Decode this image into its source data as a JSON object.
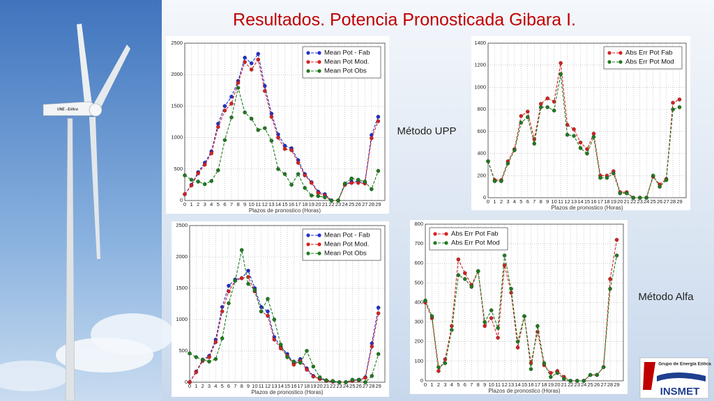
{
  "slide": {
    "title": "Resultados. Potencia Pronosticada Gibara I.",
    "method_upp": "Método UPP",
    "method_alfa": "Método Alfa",
    "turbine_label": "UNE - Eólica",
    "logo_group": "Grupo de Energía Eólica",
    "logo_name": "INSMET"
  },
  "chart_data": [
    {
      "type": "line",
      "xlabel": "Plazos de pronostico (Horas)",
      "legend": "upper right",
      "grid": true,
      "x": [
        0,
        1,
        2,
        3,
        4,
        5,
        6,
        7,
        8,
        9,
        10,
        11,
        12,
        13,
        14,
        15,
        16,
        17,
        18,
        19,
        20,
        21,
        22,
        23,
        24,
        25,
        26,
        27,
        28,
        29
      ],
      "xlim": [
        0,
        30
      ],
      "xticks": [
        0,
        1,
        2,
        3,
        4,
        5,
        6,
        7,
        8,
        9,
        10,
        11,
        12,
        13,
        14,
        15,
        16,
        17,
        18,
        19,
        20,
        21,
        22,
        23,
        24,
        25,
        26,
        27,
        28,
        29
      ],
      "ylim": [
        0,
        2500
      ],
      "yticks": [
        0,
        500,
        1000,
        1500,
        2000,
        2500
      ],
      "series": [
        {
          "name": "Mean Pot - Fab",
          "color": "#1f2fd0",
          "values": [
            100,
            250,
            450,
            600,
            780,
            1220,
            1500,
            1650,
            1900,
            2270,
            2180,
            2330,
            1820,
            1380,
            1050,
            870,
            830,
            640,
            420,
            290,
            140,
            100,
            0,
            0,
            250,
            300,
            300,
            280,
            1040,
            1330
          ]
        },
        {
          "name": "Mean Pot Mod.",
          "color": "#d62020",
          "values": [
            100,
            240,
            430,
            570,
            750,
            1170,
            1430,
            1540,
            1870,
            2200,
            2080,
            2240,
            1740,
            1330,
            1000,
            820,
            800,
            600,
            400,
            280,
            120,
            80,
            0,
            0,
            250,
            280,
            280,
            270,
            990,
            1260
          ]
        },
        {
          "name": "Mean Pot Obs",
          "color": "#1e7a1e",
          "values": [
            400,
            330,
            300,
            260,
            310,
            480,
            960,
            1320,
            1790,
            1400,
            1300,
            1120,
            1150,
            950,
            500,
            420,
            250,
            420,
            200,
            80,
            70,
            50,
            0,
            0,
            270,
            350,
            330,
            300,
            180,
            470
          ]
        }
      ]
    },
    {
      "type": "line",
      "xlabel": "Plazos de pronostico (Horas)",
      "legend": "upper right",
      "grid": true,
      "x": [
        0,
        1,
        2,
        3,
        4,
        5,
        6,
        7,
        8,
        9,
        10,
        11,
        12,
        13,
        14,
        15,
        16,
        17,
        18,
        19,
        20,
        21,
        22,
        23,
        24,
        25,
        26,
        27,
        28,
        29
      ],
      "xlim": [
        0,
        30
      ],
      "xticks": [
        0,
        1,
        2,
        3,
        4,
        5,
        6,
        7,
        8,
        9,
        10,
        11,
        12,
        13,
        14,
        15,
        16,
        17,
        18,
        19,
        20,
        21,
        22,
        23,
        24,
        25,
        26,
        27,
        28,
        29
      ],
      "ylim": [
        0,
        1400
      ],
      "yticks": [
        0,
        200,
        400,
        600,
        800,
        1000,
        1200,
        1400
      ],
      "series": [
        {
          "name": "Abs Err Pot Fab",
          "color": "#d62020",
          "values": [
            330,
            160,
            160,
            330,
            440,
            740,
            780,
            530,
            850,
            900,
            870,
            1220,
            660,
            620,
            500,
            440,
            580,
            200,
            200,
            240,
            50,
            50,
            0,
            0,
            0,
            190,
            120,
            170,
            860,
            890
          ]
        },
        {
          "name": "Abs Err Pot Mod",
          "color": "#1e7a1e",
          "values": [
            330,
            150,
            150,
            310,
            430,
            680,
            730,
            490,
            820,
            820,
            790,
            1120,
            570,
            560,
            450,
            400,
            550,
            180,
            180,
            220,
            40,
            40,
            0,
            0,
            0,
            200,
            100,
            160,
            800,
            820
          ]
        }
      ]
    },
    {
      "type": "line",
      "xlabel": "Plazos de pronostico (Horas)",
      "legend": "upper right",
      "grid": true,
      "x": [
        0,
        1,
        2,
        3,
        4,
        5,
        6,
        7,
        8,
        9,
        10,
        11,
        12,
        13,
        14,
        15,
        16,
        17,
        18,
        19,
        20,
        21,
        22,
        23,
        24,
        25,
        26,
        27,
        28,
        29
      ],
      "xlim": [
        0,
        30
      ],
      "xticks": [
        0,
        1,
        2,
        3,
        4,
        5,
        6,
        7,
        8,
        9,
        10,
        11,
        12,
        13,
        14,
        15,
        16,
        17,
        18,
        19,
        20,
        21,
        22,
        23,
        24,
        25,
        26,
        27,
        28,
        29
      ],
      "ylim": [
        0,
        2500
      ],
      "yticks": [
        0,
        500,
        1000,
        1500,
        2000,
        2500
      ],
      "series": [
        {
          "name": "Mean Pot  - Fab",
          "color": "#1f2fd0",
          "values": [
            0,
            170,
            360,
            420,
            680,
            1200,
            1540,
            1640,
            1660,
            1780,
            1500,
            1200,
            1130,
            720,
            570,
            450,
            300,
            370,
            220,
            100,
            60,
            30,
            10,
            0,
            0,
            30,
            40,
            80,
            620,
            1190
          ]
        },
        {
          "name": "Mean Pot Mod.",
          "color": "#d62020",
          "values": [
            0,
            160,
            340,
            400,
            640,
            1130,
            1450,
            1620,
            1660,
            1680,
            1450,
            1130,
            1060,
            680,
            540,
            420,
            280,
            340,
            200,
            90,
            50,
            20,
            10,
            0,
            0,
            20,
            30,
            70,
            570,
            1100
          ]
        },
        {
          "name": "Mean Pot Obs",
          "color": "#1e7a1e",
          "values": [
            460,
            400,
            360,
            330,
            370,
            700,
            1260,
            1620,
            2110,
            1570,
            1470,
            1130,
            1330,
            1000,
            600,
            400,
            330,
            310,
            500,
            250,
            80,
            30,
            20,
            0,
            0,
            40,
            40,
            0,
            100,
            450
          ]
        }
      ]
    },
    {
      "type": "line",
      "xlabel": "Plazos de pronostico (Horas)",
      "legend": "upper left",
      "grid": true,
      "x": [
        0,
        1,
        2,
        3,
        4,
        5,
        6,
        7,
        8,
        9,
        10,
        11,
        12,
        13,
        14,
        15,
        16,
        17,
        18,
        19,
        20,
        21,
        22,
        23,
        24,
        25,
        26,
        27,
        28,
        29
      ],
      "xlim": [
        0,
        30
      ],
      "xticks": [
        0,
        1,
        2,
        3,
        4,
        5,
        6,
        7,
        8,
        9,
        10,
        11,
        12,
        13,
        14,
        15,
        16,
        17,
        18,
        19,
        20,
        21,
        22,
        23,
        24,
        25,
        26,
        27,
        28,
        29
      ],
      "ylim": [
        0,
        800
      ],
      "yticks": [
        0,
        100,
        200,
        300,
        400,
        500,
        600,
        700,
        800
      ],
      "series": [
        {
          "name": "Abs Err Pot Fab",
          "color": "#d62020",
          "values": [
            400,
            320,
            50,
            110,
            280,
            620,
            550,
            490,
            560,
            280,
            320,
            220,
            590,
            450,
            170,
            330,
            90,
            250,
            80,
            40,
            50,
            20,
            0,
            0,
            0,
            30,
            30,
            70,
            520,
            720
          ]
        },
        {
          "name": "Abs Err Pot Mod",
          "color": "#1e7a1e",
          "values": [
            410,
            330,
            70,
            90,
            260,
            540,
            520,
            480,
            560,
            300,
            360,
            270,
            640,
            470,
            200,
            330,
            60,
            280,
            90,
            20,
            40,
            10,
            0,
            0,
            0,
            30,
            30,
            70,
            470,
            640
          ]
        }
      ]
    }
  ]
}
